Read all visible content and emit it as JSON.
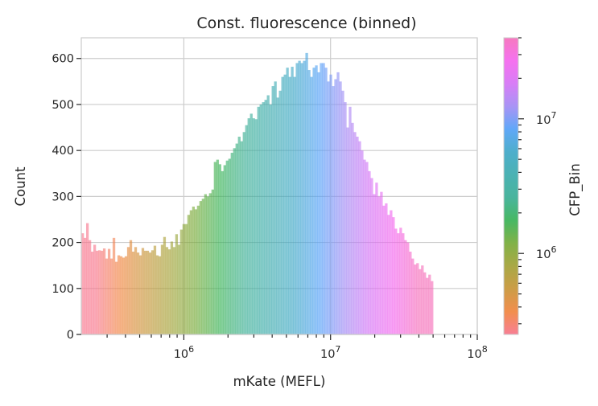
{
  "chart_data": {
    "type": "bar",
    "title": "Const. fluorescence (binned)",
    "xlabel": "mKate (MEFL)",
    "ylabel": "Count",
    "x_scale": "log",
    "xlim": [
      200000,
      100000000
    ],
    "ylim": [
      0,
      645
    ],
    "grid": true,
    "x_ticks": [
      {
        "value": 1000000,
        "base": "10",
        "exp": "6"
      },
      {
        "value": 10000000,
        "base": "10",
        "exp": "7"
      },
      {
        "value": 100000000,
        "base": "10",
        "exp": "8"
      }
    ],
    "y_ticks": [
      0,
      100,
      200,
      300,
      400,
      500,
      600
    ],
    "bins": {
      "x_start": 200000,
      "x_end": 50000000,
      "counts": [
        220,
        210,
        242,
        205,
        180,
        195,
        182,
        183,
        182,
        187,
        165,
        186,
        165,
        210,
        158,
        172,
        170,
        167,
        170,
        190,
        205,
        180,
        190,
        178,
        172,
        188,
        182,
        182,
        178,
        183,
        193,
        172,
        170,
        195,
        212,
        190,
        185,
        202,
        190,
        218,
        195,
        228,
        240,
        240,
        260,
        270,
        278,
        272,
        280,
        290,
        295,
        305,
        300,
        307,
        315,
        375,
        380,
        370,
        355,
        368,
        378,
        382,
        395,
        405,
        415,
        430,
        420,
        440,
        455,
        470,
        480,
        470,
        468,
        495,
        500,
        505,
        510,
        520,
        500,
        540,
        550,
        515,
        530,
        560,
        565,
        580,
        560,
        582,
        560,
        590,
        595,
        590,
        595,
        612,
        575,
        560,
        580,
        585,
        570,
        590,
        590,
        580,
        550,
        565,
        540,
        555,
        570,
        550,
        530,
        505,
        450,
        495,
        460,
        440,
        430,
        420,
        400,
        380,
        375,
        355,
        340,
        305,
        330,
        300,
        310,
        280,
        285,
        260,
        270,
        255,
        230,
        220,
        232,
        220,
        205,
        200,
        180,
        165,
        152,
        155,
        142,
        150,
        135,
        123,
        130,
        116
      ]
    },
    "colorbar": {
      "label": "CFP_Bin",
      "scale": "log",
      "range": [
        250000,
        40000000
      ],
      "major_ticks": [
        {
          "value": 1000000,
          "base": "10",
          "exp": "6"
        },
        {
          "value": 10000000,
          "base": "10",
          "exp": "7"
        }
      ],
      "colormap": [
        "#f77189",
        "#f0823a",
        "#c69232",
        "#a09f31",
        "#73a933",
        "#33b052",
        "#35ac92",
        "#37a9ab",
        "#3aa5c6",
        "#4f9ef7",
        "#9f88f4",
        "#d46ff5",
        "#f462ed",
        "#f56ab8"
      ]
    }
  }
}
